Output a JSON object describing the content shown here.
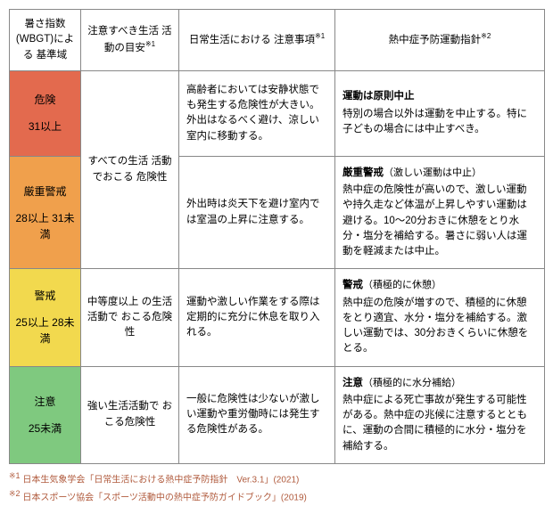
{
  "header": {
    "col0": "暑さ指数 (WBGT)による 基準域",
    "col1_pre": "注意すべき生活 活動の目安",
    "col1_sup": "※1",
    "col2_pre": "日常生活における 注意事項",
    "col2_sup": "※1",
    "col3_pre": "熱中症予防運動指針",
    "col3_sup": "※2"
  },
  "rows": [
    {
      "level": "危険",
      "range": "31以上",
      "activity": "すべての生活 活動でおこる 危険性",
      "activity_rowspan": 2,
      "daily": "高齢者においては安静状態でも発生する危険性が大きい。外出はなるべく避け、涼しい室内に移動する。",
      "exercise_title": "運動は原則中止",
      "exercise_sub": "",
      "exercise_body": "特別の場合以外は運動を中止する。特に子どもの場合には中止すべき。",
      "bg": "#e36a4e"
    },
    {
      "level": "厳重警戒",
      "range": "28以上 31未満",
      "daily": "外出時は炎天下を避け室内では室温の上昇に注意する。",
      "exercise_title": "厳重警戒",
      "exercise_sub": "（激しい運動は中止）",
      "exercise_body": "熱中症の危険性が高いので、激しい運動や持久走など体温が上昇しやすい運動は避ける。10～20分おきに休憩をとり水分・塩分を補給する。暑さに弱い人は運動を軽減または中止。",
      "bg": "#f0a04c"
    },
    {
      "level": "警戒",
      "range": "25以上 28未満",
      "activity": "中等度以上 の生活活動で おこる危険性",
      "activity_rowspan": 1,
      "daily": "運動や激しい作業をする際は定期的に充分に休息を取り入れる。",
      "exercise_title": "警戒",
      "exercise_sub": "（積極的に休憩）",
      "exercise_body": "熱中症の危険が増すので、積極的に休憩をとり適宜、水分・塩分を補給する。激しい運動では、30分おきくらいに休憩をとる。",
      "bg": "#f2d94e"
    },
    {
      "level": "注意",
      "range": "25未満",
      "activity": "強い生活活動で おこる危険性",
      "activity_rowspan": 1,
      "daily": "一般に危険性は少ないが激しい運動や重労働時には発生する危険性がある。",
      "exercise_title": "注意",
      "exercise_sub": "（積極的に水分補給）",
      "exercise_body": "熱中症による死亡事故が発生する可能性がある。熱中症の兆候に注意するとともに、運動の合間に積極的に水分・塩分を補給する。",
      "bg": "#7fc97f"
    }
  ],
  "footnotes": {
    "f1_marker": "※1",
    "f1_text": " 日本生気象学会「日常生活における熱中症予防指針　Ver.3.1」(2021)",
    "f2_marker": "※2",
    "f2_text": " 日本スポーツ協会「スポーツ活動中の熱中症予防ガイドブック」(2019)"
  },
  "row_heights": [
    "96px",
    "114px",
    "106px",
    "108px"
  ]
}
